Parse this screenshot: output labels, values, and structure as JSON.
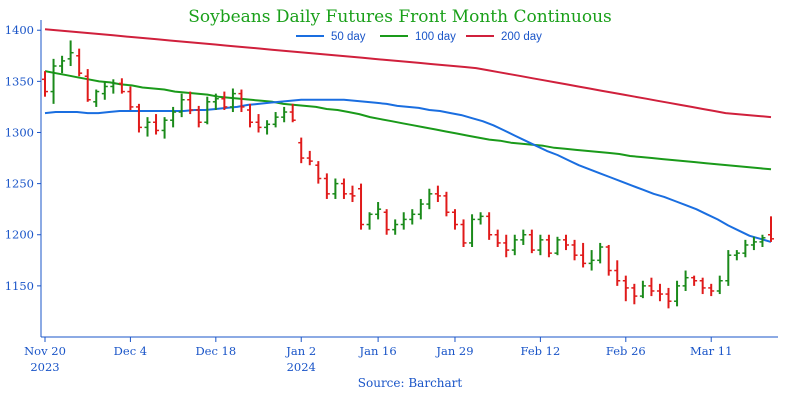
{
  "chart_data": {
    "type": "ohlc",
    "title": "Soybeans Daily Futures Front Month Continuous",
    "source": "Source: Barchart",
    "ylim": [
      1100,
      1410
    ],
    "yticks": [
      1150,
      1200,
      1250,
      1300,
      1350,
      1400
    ],
    "x_ticks": [
      {
        "label": "Nov 20",
        "label2": "2023",
        "index": 0
      },
      {
        "label": "Dec 4",
        "label2": "",
        "index": 10
      },
      {
        "label": "Dec 18",
        "label2": "",
        "index": 20
      },
      {
        "label": "Jan 2",
        "label2": "2024",
        "index": 30
      },
      {
        "label": "Jan 16",
        "label2": "",
        "index": 39
      },
      {
        "label": "Jan 29",
        "label2": "",
        "index": 48
      },
      {
        "label": "Feb 12",
        "label2": "",
        "index": 58
      },
      {
        "label": "Feb 26",
        "label2": "",
        "index": 68
      },
      {
        "label": "Mar 11",
        "label2": "",
        "index": 78
      }
    ],
    "colors": {
      "up": "#1a8a1a",
      "down": "#e01a1a",
      "axis": "#1a55c8",
      "title": "#1aa01a"
    },
    "legend": [
      {
        "name": "50 day",
        "color": "#1a6ee0"
      },
      {
        "name": "100 day",
        "color": "#1a9a1a"
      },
      {
        "name": "200 day",
        "color": "#d0203c"
      }
    ],
    "ohlc": [
      [
        1352,
        1360,
        1335,
        1340
      ],
      [
        1340,
        1372,
        1328,
        1365
      ],
      [
        1365,
        1375,
        1358,
        1370
      ],
      [
        1372,
        1390,
        1365,
        1378
      ],
      [
        1375,
        1382,
        1355,
        1358
      ],
      [
        1355,
        1362,
        1330,
        1332
      ],
      [
        1330,
        1342,
        1325,
        1340
      ],
      [
        1338,
        1350,
        1332,
        1345
      ],
      [
        1345,
        1352,
        1338,
        1348
      ],
      [
        1348,
        1353,
        1338,
        1340
      ],
      [
        1340,
        1345,
        1322,
        1325
      ],
      [
        1325,
        1328,
        1300,
        1305
      ],
      [
        1305,
        1315,
        1296,
        1310
      ],
      [
        1310,
        1318,
        1298,
        1302
      ],
      [
        1302,
        1315,
        1294,
        1312
      ],
      [
        1312,
        1325,
        1305,
        1320
      ],
      [
        1320,
        1338,
        1315,
        1332
      ],
      [
        1332,
        1340,
        1318,
        1322
      ],
      [
        1322,
        1326,
        1305,
        1310
      ],
      [
        1310,
        1335,
        1308,
        1330
      ],
      [
        1330,
        1338,
        1322,
        1333
      ],
      [
        1333,
        1340,
        1322,
        1325
      ],
      [
        1325,
        1343,
        1320,
        1338
      ],
      [
        1338,
        1342,
        1320,
        1325
      ],
      [
        1322,
        1328,
        1305,
        1310
      ],
      [
        1310,
        1318,
        1300,
        1305
      ],
      [
        1305,
        1312,
        1298,
        1308
      ],
      [
        1308,
        1320,
        1305,
        1315
      ],
      [
        1315,
        1325,
        1310,
        1320
      ],
      [
        1320,
        1328,
        1310,
        1312
      ],
      [
        1290,
        1295,
        1270,
        1275
      ],
      [
        1275,
        1282,
        1268,
        1272
      ],
      [
        1268,
        1272,
        1250,
        1255
      ],
      [
        1255,
        1260,
        1235,
        1240
      ],
      [
        1240,
        1255,
        1235,
        1250
      ],
      [
        1250,
        1255,
        1235,
        1240
      ],
      [
        1240,
        1248,
        1232,
        1238
      ],
      [
        1245,
        1250,
        1205,
        1210
      ],
      [
        1210,
        1222,
        1205,
        1220
      ],
      [
        1220,
        1232,
        1215,
        1225
      ],
      [
        1222,
        1225,
        1200,
        1205
      ],
      [
        1205,
        1215,
        1200,
        1210
      ],
      [
        1210,
        1222,
        1205,
        1215
      ],
      [
        1215,
        1225,
        1210,
        1220
      ],
      [
        1220,
        1235,
        1215,
        1230
      ],
      [
        1230,
        1245,
        1225,
        1240
      ],
      [
        1240,
        1248,
        1232,
        1238
      ],
      [
        1238,
        1242,
        1218,
        1222
      ],
      [
        1222,
        1225,
        1205,
        1210
      ],
      [
        1210,
        1215,
        1188,
        1192
      ],
      [
        1192,
        1220,
        1188,
        1215
      ],
      [
        1215,
        1222,
        1210,
        1218
      ],
      [
        1218,
        1222,
        1195,
        1200
      ],
      [
        1200,
        1205,
        1188,
        1192
      ],
      [
        1192,
        1200,
        1178,
        1185
      ],
      [
        1185,
        1200,
        1180,
        1195
      ],
      [
        1195,
        1205,
        1190,
        1200
      ],
      [
        1200,
        1205,
        1182,
        1185
      ],
      [
        1185,
        1200,
        1180,
        1195
      ],
      [
        1195,
        1200,
        1178,
        1182
      ],
      [
        1182,
        1198,
        1180,
        1195
      ],
      [
        1195,
        1200,
        1185,
        1190
      ],
      [
        1190,
        1195,
        1175,
        1180
      ],
      [
        1180,
        1192,
        1168,
        1172
      ],
      [
        1172,
        1185,
        1165,
        1175
      ],
      [
        1175,
        1192,
        1172,
        1188
      ],
      [
        1188,
        1190,
        1160,
        1165
      ],
      [
        1165,
        1175,
        1150,
        1155
      ],
      [
        1155,
        1160,
        1135,
        1148
      ],
      [
        1148,
        1152,
        1132,
        1140
      ],
      [
        1140,
        1155,
        1138,
        1150
      ],
      [
        1150,
        1158,
        1140,
        1145
      ],
      [
        1145,
        1152,
        1135,
        1142
      ],
      [
        1142,
        1148,
        1128,
        1135
      ],
      [
        1135,
        1155,
        1130,
        1150
      ],
      [
        1150,
        1165,
        1145,
        1158
      ],
      [
        1158,
        1160,
        1150,
        1155
      ],
      [
        1155,
        1158,
        1142,
        1148
      ],
      [
        1148,
        1152,
        1140,
        1145
      ],
      [
        1145,
        1160,
        1142,
        1155
      ],
      [
        1155,
        1185,
        1150,
        1180
      ],
      [
        1180,
        1185,
        1175,
        1182
      ],
      [
        1182,
        1195,
        1178,
        1190
      ],
      [
        1190,
        1198,
        1185,
        1193
      ],
      [
        1193,
        1200,
        1188,
        1197
      ],
      [
        1200,
        1218,
        1193,
        1196
      ]
    ],
    "ma50": [
      1319,
      1320,
      1320,
      1320,
      1319,
      1319,
      1320,
      1321,
      1321,
      1321,
      1321,
      1321,
      1321,
      1321,
      1322,
      1322,
      1323,
      1324,
      1325,
      1327,
      1328,
      1329,
      1330,
      1331,
      1332,
      1332,
      1332,
      1332,
      1332,
      1331,
      1330,
      1329,
      1328,
      1326,
      1325,
      1324,
      1322,
      1321,
      1319,
      1317,
      1314,
      1311,
      1307,
      1302,
      1297,
      1292,
      1287,
      1282,
      1278,
      1273,
      1268,
      1264,
      1260,
      1256,
      1252,
      1248,
      1244,
      1240,
      1237,
      1233,
      1229,
      1225,
      1220,
      1215,
      1209,
      1204,
      1199,
      1196,
      1193
    ],
    "ma100": [
      1360,
      1358,
      1356,
      1354,
      1352,
      1350,
      1349,
      1347,
      1346,
      1344,
      1343,
      1342,
      1340,
      1339,
      1338,
      1337,
      1335,
      1334,
      1333,
      1332,
      1331,
      1330,
      1328,
      1327,
      1326,
      1325,
      1323,
      1322,
      1320,
      1318,
      1315,
      1313,
      1311,
      1309,
      1307,
      1305,
      1303,
      1301,
      1299,
      1297,
      1295,
      1293,
      1292,
      1290,
      1289,
      1288,
      1287,
      1285,
      1284,
      1283,
      1282,
      1281,
      1280,
      1279,
      1277,
      1276,
      1275,
      1274,
      1273,
      1272,
      1271,
      1270,
      1269,
      1268,
      1267,
      1266,
      1265,
      1264
    ],
    "ma200": [
      1401,
      1400,
      1399,
      1398,
      1397,
      1396,
      1395,
      1394,
      1393,
      1392,
      1391,
      1390,
      1389,
      1388,
      1387,
      1386,
      1385,
      1384,
      1383,
      1382,
      1381,
      1380,
      1379,
      1378,
      1377,
      1376,
      1375,
      1374,
      1373,
      1372,
      1371,
      1370,
      1369,
      1368,
      1367,
      1366,
      1365,
      1364,
      1363,
      1361,
      1359,
      1357,
      1355,
      1353,
      1351,
      1349,
      1347,
      1345,
      1343,
      1341,
      1339,
      1337,
      1335,
      1333,
      1331,
      1329,
      1327,
      1325,
      1323,
      1321,
      1319,
      1318,
      1317,
      1316,
      1315
    ]
  }
}
